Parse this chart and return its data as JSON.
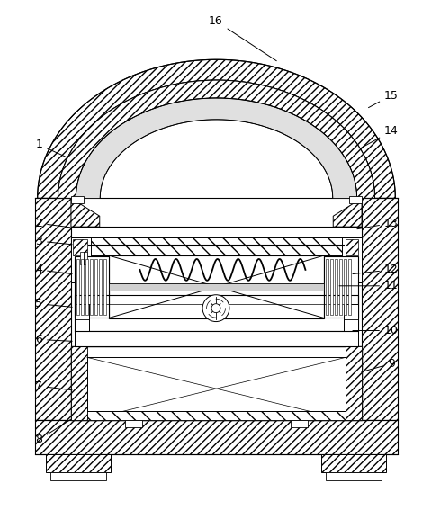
{
  "bg_color": "#ffffff",
  "line_color": "#000000",
  "fig_width": 4.81,
  "fig_height": 5.67,
  "dpi": 100,
  "annotations": [
    [
      "16",
      240,
      22,
      310,
      68
    ],
    [
      "15",
      436,
      105,
      408,
      120
    ],
    [
      "14",
      436,
      145,
      400,
      165
    ],
    [
      "1",
      42,
      160,
      75,
      175
    ],
    [
      "2",
      42,
      248,
      80,
      253
    ],
    [
      "13",
      436,
      248,
      395,
      255
    ],
    [
      "3",
      42,
      268,
      82,
      272
    ],
    [
      "4",
      42,
      300,
      82,
      305
    ],
    [
      "12",
      436,
      300,
      390,
      305
    ],
    [
      "11",
      436,
      318,
      375,
      318
    ],
    [
      "5",
      42,
      338,
      82,
      342
    ],
    [
      "10",
      436,
      368,
      390,
      368
    ],
    [
      "6",
      42,
      378,
      82,
      380
    ],
    [
      "9",
      436,
      405,
      400,
      415
    ],
    [
      "7",
      42,
      430,
      82,
      435
    ],
    [
      "8",
      42,
      490,
      80,
      466
    ]
  ]
}
